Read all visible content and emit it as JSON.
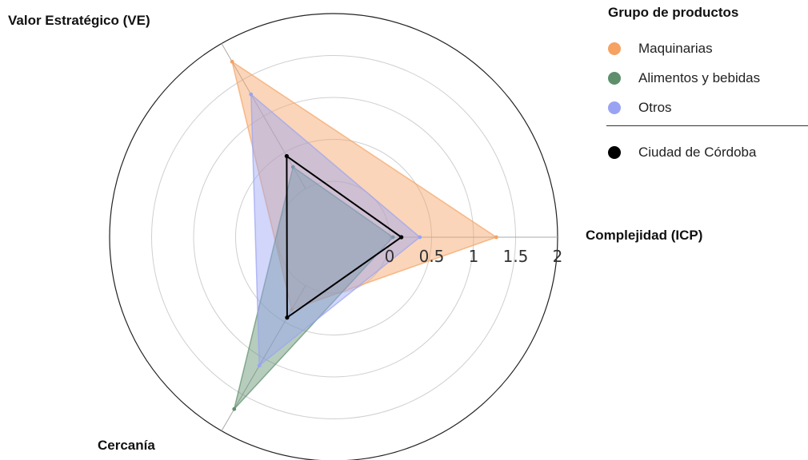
{
  "chart_data": {
    "type": "radar",
    "axes": [
      "Complejidad (ICP)",
      "Valor Estratégico (VE)",
      "Cercanía"
    ],
    "radial_ticks": [
      "0",
      "0.5",
      "1",
      "1.5",
      "2"
    ],
    "radial_range": [
      0,
      2
    ],
    "grid": true,
    "legend": {
      "title": "Grupo de productos",
      "position": "top-right"
    },
    "series": [
      {
        "name": "Maquinarias",
        "color": "#f5a263",
        "values": [
          1.27,
          1.75,
          0.33
        ]
      },
      {
        "name": "Alimentos y bebidas",
        "color": "#5e8f6c",
        "values": [
          0.04,
          0.3,
          1.7
        ]
      },
      {
        "name": "Otros",
        "color": "#9aa3f3",
        "values": [
          0.36,
          1.3,
          1.1
        ]
      },
      {
        "name": "Ciudad de Córdoba",
        "color": "#000000",
        "values": [
          0.14,
          0.45,
          0.44
        ]
      }
    ]
  }
}
